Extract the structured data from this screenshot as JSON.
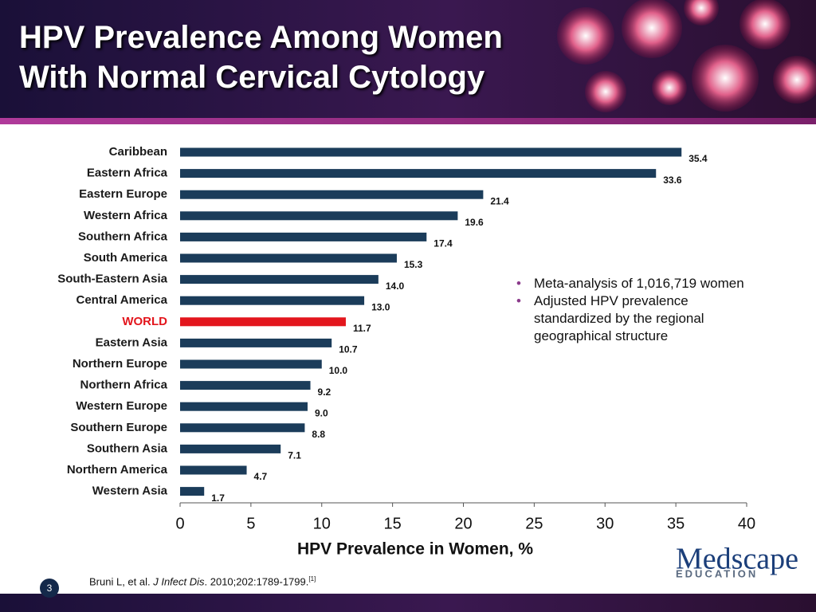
{
  "chart_data": {
    "type": "hbar",
    "title": "HPV Prevalence Among Women With Normal Cervical Cytology",
    "x_label": "HPV Prevalence in Women, %",
    "categories": [
      "Caribbean",
      "Eastern Africa",
      "Eastern Europe",
      "Western Africa",
      "Southern Africa",
      "South America",
      "South-Eastern Asia",
      "Central America",
      "WORLD",
      "Eastern Asia",
      "Northern Europe",
      "Northern Africa",
      "Western Europe",
      "Southern Europe",
      "Southern Asia",
      "Northern America",
      "Western Asia"
    ],
    "values": [
      35.4,
      33.6,
      21.4,
      19.6,
      17.4,
      15.3,
      14.0,
      13.0,
      11.7,
      10.7,
      10.0,
      9.2,
      9.0,
      8.8,
      7.1,
      4.7,
      1.7
    ],
    "value_labels": [
      "35.4",
      "33.6",
      "21.4",
      "19.6",
      "17.4",
      "15.3",
      "14.0",
      "13.0",
      "11.7",
      "10.7",
      "10.0",
      "9.2",
      "9.0",
      "8.8",
      "7.1",
      "4.7",
      "1.7"
    ],
    "colors": [
      "#1b3c5a",
      "#1b3c5a",
      "#1b3c5a",
      "#1b3c5a",
      "#1b3c5a",
      "#1b3c5a",
      "#1b3c5a",
      "#1b3c5a",
      "#e3161d",
      "#1b3c5a",
      "#1b3c5a",
      "#1b3c5a",
      "#1b3c5a",
      "#1b3c5a",
      "#1b3c5a",
      "#1b3c5a",
      "#1b3c5a"
    ],
    "label_colors": [
      "#1a1a1a",
      "#1a1a1a",
      "#1a1a1a",
      "#1a1a1a",
      "#1a1a1a",
      "#1a1a1a",
      "#1a1a1a",
      "#1a1a1a",
      "#e3161d",
      "#1a1a1a",
      "#1a1a1a",
      "#1a1a1a",
      "#1a1a1a",
      "#1a1a1a",
      "#1a1a1a",
      "#1a1a1a",
      "#1a1a1a"
    ],
    "xlim": [
      0,
      40
    ],
    "xticks": [
      0,
      5,
      10,
      15,
      20,
      25,
      30,
      35,
      40
    ],
    "grid": false
  },
  "slide": {
    "bullets": [
      "Meta-analysis of 1,016,719 women",
      "Adjusted HPV prevalence standardized by the regional geographical structure"
    ],
    "citation": {
      "authors": "Bruni L, et al. ",
      "journal": "J Infect Dis",
      "details": ". 2010;202:1789-1799.",
      "ref": "[1]"
    },
    "page_number": "3",
    "logo": {
      "name": "Medscape",
      "tagline": "EDUCATION"
    }
  }
}
